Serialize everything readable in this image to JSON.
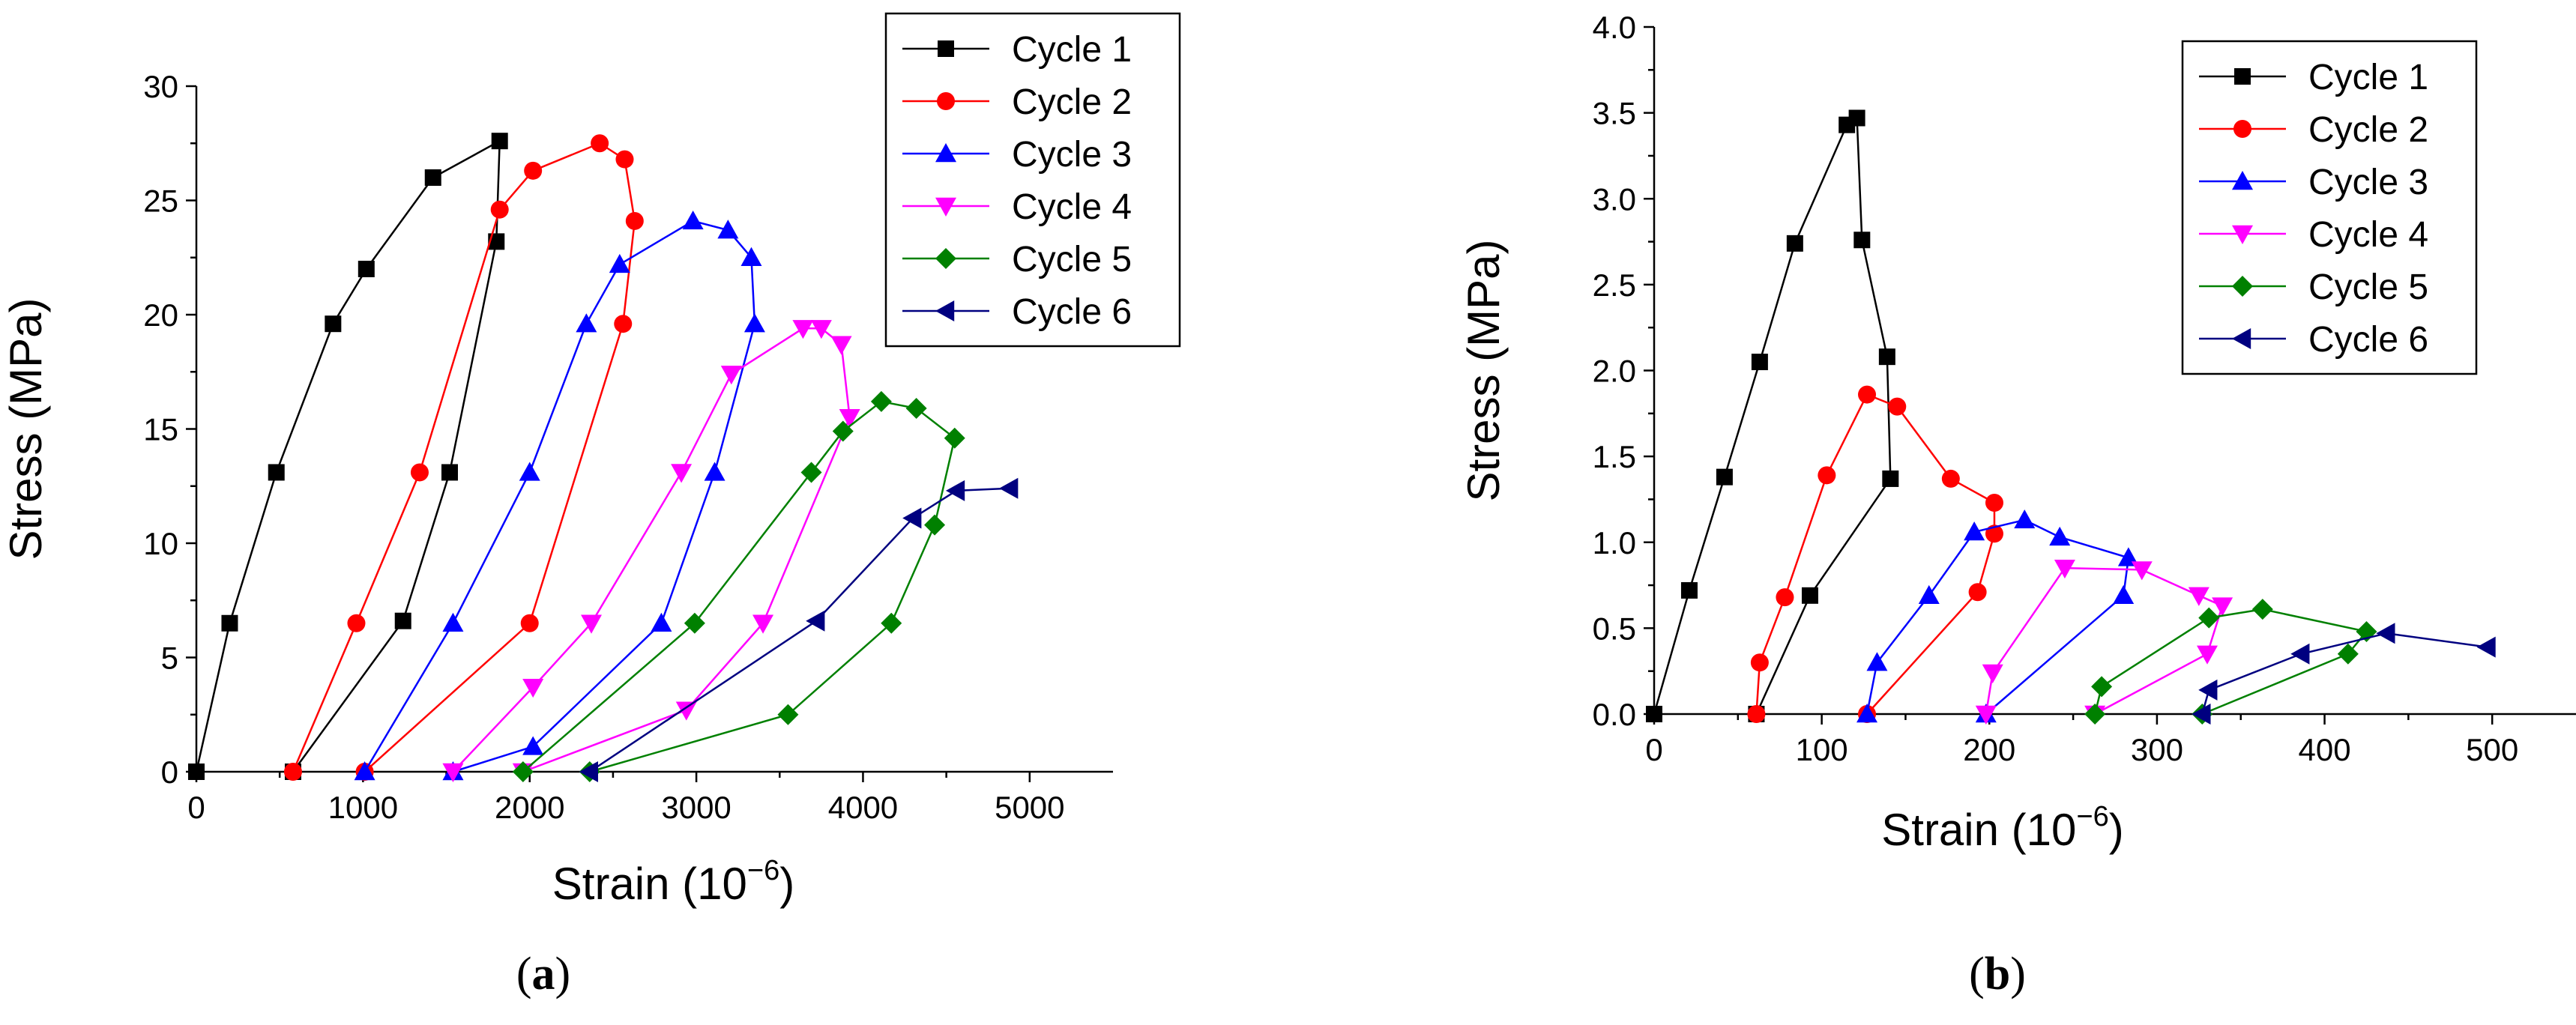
{
  "chart_data": [
    {
      "panel_label": "a",
      "type": "line",
      "xlabel": "Strain (10",
      "xlabel_sup": "−6",
      "xlabel_close": ")",
      "ylabel": "Stress (MPa)",
      "xlim": [
        0,
        5500
      ],
      "ylim": [
        0,
        30
      ],
      "xticks": [
        0,
        1000,
        2000,
        3000,
        4000,
        5000
      ],
      "yticks": [
        0,
        5,
        10,
        15,
        20,
        25,
        30
      ],
      "ytick_decimals": 0,
      "legend_position": "top-right",
      "series": [
        {
          "name": "Cycle 1",
          "color": "#000000",
          "marker": "square",
          "x": [
            0,
            200,
            480,
            820,
            1020,
            1420,
            1820,
            1800,
            1520,
            1240,
            580
          ],
          "y": [
            0,
            6.5,
            13.1,
            19.6,
            22.0,
            26.0,
            27.6,
            23.2,
            13.1,
            6.6,
            0
          ]
        },
        {
          "name": "Cycle 2",
          "color": "#ff0000",
          "marker": "circle",
          "x": [
            580,
            960,
            1340,
            1820,
            2020,
            2420,
            2570,
            2630,
            2560,
            2000,
            1010
          ],
          "y": [
            0,
            6.5,
            13.1,
            24.6,
            26.3,
            27.5,
            26.8,
            24.1,
            19.6,
            6.5,
            0
          ]
        },
        {
          "name": "Cycle 3",
          "color": "#0000ff",
          "marker": "triangle-up",
          "x": [
            1010,
            1540,
            2000,
            2340,
            2540,
            2980,
            3190,
            3330,
            3350,
            3110,
            2790,
            2020,
            1540
          ],
          "y": [
            0,
            6.5,
            13.1,
            19.6,
            22.2,
            24.1,
            23.7,
            22.5,
            19.6,
            13.1,
            6.5,
            1.1,
            0
          ]
        },
        {
          "name": "Cycle 4",
          "color": "#ff00ff",
          "marker": "triangle-down",
          "x": [
            1540,
            2020,
            2370,
            2910,
            3210,
            3640,
            3750,
            3870,
            3920,
            3400,
            2940,
            1960
          ],
          "y": [
            0,
            3.7,
            6.5,
            13.1,
            17.4,
            19.4,
            19.4,
            18.7,
            15.5,
            6.5,
            2.7,
            0
          ]
        },
        {
          "name": "Cycle 5",
          "color": "#008000",
          "marker": "diamond",
          "x": [
            1960,
            2990,
            3690,
            3880,
            4110,
            4320,
            4550,
            4430,
            4170,
            3550,
            2360
          ],
          "y": [
            0,
            6.5,
            13.1,
            14.9,
            16.2,
            15.9,
            14.6,
            10.8,
            6.5,
            2.5,
            0
          ]
        },
        {
          "name": "Cycle 6",
          "color": "#000080",
          "marker": "triangle-left",
          "x": [
            2360,
            3720,
            4300,
            4560,
            4880
          ],
          "y": [
            0,
            6.6,
            11.1,
            12.3,
            12.4
          ]
        }
      ]
    },
    {
      "panel_label": "b",
      "type": "line",
      "xlabel": "Strain (10",
      "xlabel_sup": "−6",
      "xlabel_close": ")",
      "ylabel": "Stress (MPa)",
      "xlim": [
        0,
        550
      ],
      "ylim": [
        0,
        4.0
      ],
      "xticks": [
        0,
        100,
        200,
        300,
        400,
        500
      ],
      "yticks": [
        0,
        0.5,
        1.0,
        1.5,
        2.0,
        2.5,
        3.0,
        3.5,
        4.0
      ],
      "ytick_decimals": 1,
      "legend_position": "top-right",
      "series": [
        {
          "name": "Cycle 1",
          "color": "#000000",
          "marker": "square",
          "x": [
            0,
            21,
            42,
            63,
            84,
            115,
            121,
            124,
            139,
            141,
            93,
            61
          ],
          "y": [
            0,
            0.72,
            1.38,
            2.05,
            2.74,
            3.43,
            3.47,
            2.76,
            2.08,
            1.37,
            0.69,
            0
          ]
        },
        {
          "name": "Cycle 2",
          "color": "#ff0000",
          "marker": "circle",
          "x": [
            61,
            63,
            78,
            103,
            127,
            145,
            177,
            203,
            203,
            193,
            127
          ],
          "y": [
            0,
            0.3,
            0.68,
            1.39,
            1.86,
            1.79,
            1.37,
            1.23,
            1.05,
            0.71,
            0
          ]
        },
        {
          "name": "Cycle 3",
          "color": "#0000ff",
          "marker": "triangle-up",
          "x": [
            127,
            133,
            164,
            191,
            221,
            242,
            283,
            280,
            198
          ],
          "y": [
            0,
            0.3,
            0.69,
            1.06,
            1.13,
            1.03,
            0.91,
            0.69,
            0
          ]
        },
        {
          "name": "Cycle 4",
          "color": "#ff00ff",
          "marker": "triangle-down",
          "x": [
            198,
            202,
            245,
            291,
            325,
            339,
            330,
            263
          ],
          "y": [
            0,
            0.24,
            0.85,
            0.84,
            0.69,
            0.63,
            0.35,
            0
          ]
        },
        {
          "name": "Cycle 5",
          "color": "#008000",
          "marker": "diamond",
          "x": [
            263,
            267,
            331,
            363,
            425,
            414,
            327
          ],
          "y": [
            0,
            0.16,
            0.56,
            0.61,
            0.48,
            0.35,
            0
          ]
        },
        {
          "name": "Cycle 6",
          "color": "#000080",
          "marker": "triangle-left",
          "x": [
            327,
            331,
            386,
            437,
            497
          ],
          "y": [
            0,
            0.14,
            0.35,
            0.47,
            0.39
          ]
        }
      ]
    }
  ]
}
